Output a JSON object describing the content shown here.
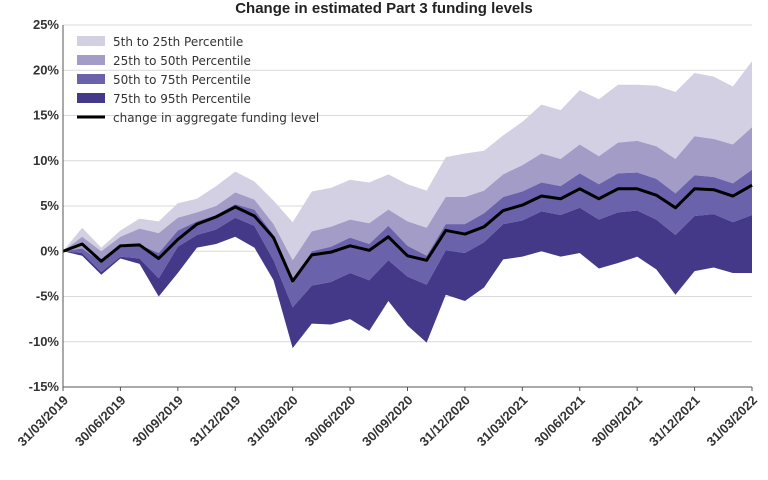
{
  "chart_data": {
    "type": "area",
    "title": "Change in estimated Part 3 funding levels",
    "y_unit": "%",
    "ylim": [
      -15,
      25
    ],
    "yticks": [
      -15,
      -10,
      -5,
      0,
      5,
      10,
      15,
      20,
      25
    ],
    "grid": true,
    "legend_position": "top-left",
    "x": [
      "31/03/2019",
      "30/04/2019",
      "31/05/2019",
      "30/06/2019",
      "31/07/2019",
      "31/08/2019",
      "30/09/2019",
      "31/10/2019",
      "30/11/2019",
      "31/12/2019",
      "31/01/2020",
      "29/02/2020",
      "31/03/2020",
      "30/04/2020",
      "31/05/2020",
      "30/06/2020",
      "31/07/2020",
      "31/08/2020",
      "30/09/2020",
      "31/10/2020",
      "30/11/2020",
      "31/12/2020",
      "31/01/2021",
      "28/02/2021",
      "31/03/2021",
      "30/04/2021",
      "31/05/2021",
      "30/06/2021",
      "31/07/2021",
      "31/08/2021",
      "30/09/2021",
      "31/10/2021",
      "30/11/2021",
      "31/12/2021",
      "31/01/2022",
      "28/02/2022",
      "31/03/2022"
    ],
    "xtick_labels": [
      "31/03/2019",
      "30/06/2019",
      "30/09/2019",
      "31/12/2019",
      "31/03/2020",
      "30/06/2020",
      "30/09/2020",
      "31/12/2020",
      "31/03/2021",
      "30/06/2021",
      "30/09/2021",
      "31/12/2021",
      "31/03/2022"
    ],
    "bands": [
      {
        "name": "5th to 25th Percentile",
        "color": "#d3d0e3",
        "upper": [
          0.0,
          2.6,
          0.4,
          2.3,
          3.6,
          3.3,
          5.3,
          5.8,
          7.2,
          8.8,
          7.7,
          5.6,
          3.2,
          6.6,
          7.0,
          7.9,
          7.6,
          8.5,
          7.4,
          6.7,
          10.4,
          10.8,
          11.1,
          12.8,
          14.3,
          16.2,
          15.6,
          17.8,
          16.8,
          18.4,
          18.4,
          18.3,
          17.6,
          19.7,
          19.3,
          18.2,
          21.0
        ],
        "lower": [
          0.0,
          1.6,
          0.0,
          1.6,
          2.5,
          2.0,
          3.7,
          4.3,
          5.0,
          6.5,
          5.7,
          3.0,
          -1.0,
          2.2,
          2.7,
          3.5,
          3.1,
          4.6,
          3.3,
          2.6,
          6.0,
          6.0,
          6.7,
          8.5,
          9.5,
          10.8,
          10.2,
          11.8,
          10.5,
          12.0,
          12.2,
          11.6,
          10.2,
          12.7,
          12.4,
          11.8,
          13.7
        ]
      },
      {
        "name": "25th to 50th Percentile",
        "color": "#a29cc7",
        "upper": [
          0.0,
          1.6,
          0.0,
          1.6,
          2.5,
          2.0,
          3.7,
          4.3,
          5.0,
          6.5,
          5.7,
          3.0,
          -1.0,
          2.2,
          2.7,
          3.5,
          3.1,
          4.6,
          3.3,
          2.6,
          6.0,
          6.0,
          6.7,
          8.5,
          9.5,
          10.8,
          10.2,
          11.8,
          10.5,
          12.0,
          12.2,
          11.6,
          10.2,
          12.7,
          12.4,
          11.8,
          13.7
        ],
        "lower": [
          0.0,
          0.3,
          -1.2,
          0.4,
          0.7,
          -0.2,
          2.3,
          3.3,
          4.0,
          5.2,
          4.6,
          1.8,
          -3.6,
          0.0,
          0.5,
          1.5,
          0.8,
          2.8,
          0.6,
          -0.5,
          3.0,
          3.0,
          4.2,
          6.0,
          6.6,
          7.6,
          7.2,
          8.6,
          7.4,
          8.6,
          8.7,
          8.0,
          6.4,
          8.4,
          8.2,
          7.5,
          9.0
        ]
      },
      {
        "name": "50th to 75th Percentile",
        "color": "#6b62ac",
        "upper": [
          0.0,
          0.3,
          -1.2,
          0.4,
          0.7,
          -0.2,
          2.3,
          3.3,
          4.0,
          5.2,
          4.6,
          1.8,
          -3.6,
          0.0,
          0.5,
          1.5,
          0.8,
          2.8,
          0.6,
          -0.5,
          3.0,
          3.0,
          4.2,
          6.0,
          6.6,
          7.6,
          7.2,
          8.6,
          7.4,
          8.6,
          8.7,
          8.0,
          6.4,
          8.4,
          8.2,
          7.5,
          9.0
        ],
        "lower": [
          0.0,
          -0.2,
          -2.3,
          -0.6,
          -0.8,
          -3.0,
          0.5,
          1.8,
          2.4,
          3.7,
          2.8,
          -1.0,
          -6.2,
          -3.8,
          -3.4,
          -2.4,
          -3.2,
          -1.0,
          -2.8,
          -3.7,
          0.1,
          -0.2,
          1.0,
          3.0,
          3.4,
          4.4,
          4.0,
          4.8,
          3.5,
          4.3,
          4.5,
          3.5,
          1.8,
          3.9,
          4.1,
          3.2,
          4.0
        ]
      },
      {
        "name": "75th to 95th Percentile",
        "color": "#433988",
        "upper": [
          0.0,
          -0.2,
          -2.3,
          -0.6,
          -0.8,
          -3.0,
          0.5,
          1.8,
          2.4,
          3.7,
          2.8,
          -1.0,
          -6.2,
          -3.8,
          -3.4,
          -2.4,
          -3.2,
          -1.0,
          -2.8,
          -3.7,
          0.1,
          -0.2,
          1.0,
          3.0,
          3.4,
          4.4,
          4.0,
          4.8,
          3.5,
          4.3,
          4.5,
          3.5,
          1.8,
          3.9,
          4.1,
          3.2,
          4.0
        ],
        "lower": [
          0.0,
          -0.5,
          -2.6,
          -0.8,
          -1.4,
          -5.0,
          -2.4,
          0.4,
          0.8,
          1.6,
          0.4,
          -3.2,
          -10.7,
          -8.0,
          -8.1,
          -7.5,
          -8.8,
          -5.5,
          -8.2,
          -10.1,
          -4.8,
          -5.5,
          -4.0,
          -0.9,
          -0.6,
          0.0,
          -0.6,
          -0.2,
          -1.9,
          -1.3,
          -0.6,
          -2.0,
          -4.8,
          -2.2,
          -1.8,
          -2.4,
          -2.4
        ]
      }
    ],
    "line": {
      "name": "change in aggregate funding level",
      "color": "#000000",
      "values": [
        0.0,
        0.8,
        -1.1,
        0.6,
        0.7,
        -0.8,
        1.3,
        3.0,
        3.8,
        4.9,
        3.9,
        1.5,
        -3.3,
        -0.4,
        -0.1,
        0.6,
        0.1,
        1.6,
        -0.5,
        -1.0,
        2.3,
        1.9,
        2.7,
        4.5,
        5.1,
        6.1,
        5.8,
        6.9,
        5.8,
        6.9,
        6.9,
        6.2,
        4.8,
        6.9,
        6.8,
        6.1,
        7.3
      ]
    }
  }
}
